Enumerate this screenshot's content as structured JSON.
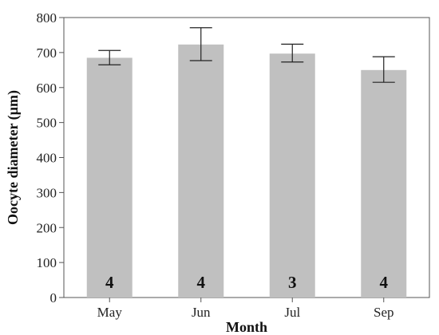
{
  "chart_data": {
    "type": "bar",
    "categories": [
      "May",
      "Jun",
      "Jul",
      "Sep"
    ],
    "values": [
      685,
      723,
      697,
      650
    ],
    "error_low": [
      665,
      677,
      673,
      615
    ],
    "error_high": [
      706,
      771,
      724,
      688
    ],
    "bar_labels": [
      "4",
      "4",
      "3",
      "4"
    ],
    "xlabel": "Month",
    "ylabel": "Oocyte diameter (µm)",
    "ylim": [
      0,
      800
    ],
    "yticks": [
      0,
      100,
      200,
      300,
      400,
      500,
      600,
      700,
      800
    ],
    "grid": false,
    "bar_color": "#c0c0c0",
    "error_color": "#222222"
  }
}
